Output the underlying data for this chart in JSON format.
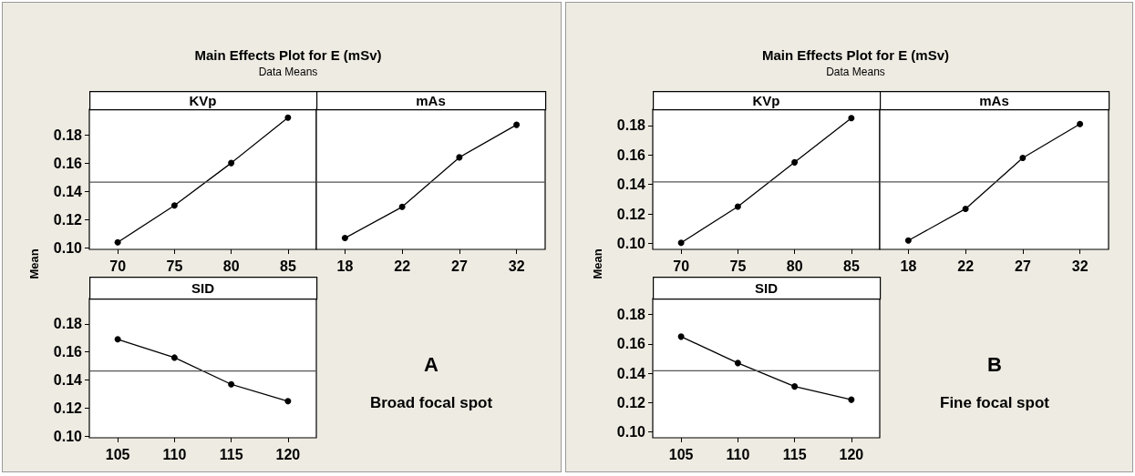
{
  "chart_data": [
    {
      "type": "line",
      "title": "Main Effects Plot for E (mSv)",
      "subtitle": "Data Means",
      "xlabel": "KVp",
      "ylabel": "Mean",
      "categories": [
        "70",
        "75",
        "80",
        "85"
      ],
      "series": [
        {
          "color": "#000000",
          "values": [
            0.104,
            0.13,
            0.16,
            0.192
          ]
        }
      ],
      "ylim": [
        0.099,
        0.198
      ],
      "yticks": [
        {
          "value": 0.1,
          "label": "0.10"
        },
        {
          "value": 0.12,
          "label": "0.12"
        },
        {
          "value": 0.14,
          "label": "0.14"
        },
        {
          "value": 0.16,
          "label": "0.16"
        },
        {
          "value": 0.18,
          "label": "0.18"
        }
      ],
      "ref_lines": [
        {
          "axis": "y",
          "value": 0.1465,
          "color": "#555555"
        }
      ],
      "marker": "circle",
      "line_style": "solid",
      "grid": false
    },
    {
      "type": "line",
      "xlabel": "mAs",
      "categories": [
        "18",
        "22",
        "27",
        "32"
      ],
      "series": [
        {
          "color": "#000000",
          "values": [
            0.107,
            0.129,
            0.164,
            0.187
          ]
        }
      ],
      "ylim": [
        0.099,
        0.198
      ],
      "ref_lines": [
        {
          "axis": "y",
          "value": 0.1465,
          "color": "#555555"
        }
      ],
      "marker": "circle",
      "line_style": "solid",
      "grid": false,
      "tick_labels": "x"
    },
    {
      "type": "line",
      "xlabel": "SID",
      "categories": [
        "105",
        "110",
        "115",
        "120"
      ],
      "series": [
        {
          "color": "#000000",
          "values": [
            0.169,
            0.156,
            0.137,
            0.125
          ]
        }
      ],
      "ylim": [
        0.099,
        0.198
      ],
      "yticks": [
        {
          "value": 0.1,
          "label": "0.10"
        },
        {
          "value": 0.12,
          "label": "0.12"
        },
        {
          "value": 0.14,
          "label": "0.14"
        },
        {
          "value": 0.16,
          "label": "0.16"
        },
        {
          "value": 0.18,
          "label": "0.18"
        }
      ],
      "ref_lines": [
        {
          "axis": "y",
          "value": 0.1465,
          "color": "#555555"
        }
      ],
      "marker": "circle",
      "line_style": "solid",
      "grid": false,
      "annotations": [
        "A",
        "Broad focal spot"
      ]
    },
    {
      "type": "line",
      "title": "Main Effects Plot for E (mSv)",
      "subtitle": "Data Means",
      "xlabel": "KVp",
      "ylabel": "Mean",
      "categories": [
        "70",
        "75",
        "80",
        "85"
      ],
      "series": [
        {
          "color": "#000000",
          "values": [
            0.1005,
            0.125,
            0.155,
            0.185
          ]
        }
      ],
      "ylim": [
        0.096,
        0.191
      ],
      "yticks": [
        {
          "value": 0.1,
          "label": "0.10"
        },
        {
          "value": 0.12,
          "label": "0.12"
        },
        {
          "value": 0.14,
          "label": "0.14"
        },
        {
          "value": 0.16,
          "label": "0.16"
        },
        {
          "value": 0.18,
          "label": "0.18"
        }
      ],
      "ref_lines": [
        {
          "axis": "y",
          "value": 0.1417,
          "color": "#555555"
        }
      ],
      "marker": "circle",
      "line_style": "solid",
      "grid": false
    },
    {
      "type": "line",
      "xlabel": "mAs",
      "categories": [
        "18",
        "22",
        "27",
        "32"
      ],
      "series": [
        {
          "color": "#000000",
          "values": [
            0.102,
            0.1235,
            0.158,
            0.181
          ]
        }
      ],
      "ylim": [
        0.096,
        0.191
      ],
      "ref_lines": [
        {
          "axis": "y",
          "value": 0.1417,
          "color": "#555555"
        }
      ],
      "marker": "circle",
      "line_style": "solid",
      "grid": false,
      "tick_labels": "x"
    },
    {
      "type": "line",
      "xlabel": "SID",
      "categories": [
        "105",
        "110",
        "115",
        "120"
      ],
      "series": [
        {
          "color": "#000000",
          "values": [
            0.165,
            0.147,
            0.131,
            0.122
          ]
        }
      ],
      "ylim": [
        0.096,
        0.191
      ],
      "yticks": [
        {
          "value": 0.1,
          "label": "0.10"
        },
        {
          "value": 0.12,
          "label": "0.12"
        },
        {
          "value": 0.14,
          "label": "0.14"
        },
        {
          "value": 0.16,
          "label": "0.16"
        },
        {
          "value": 0.18,
          "label": "0.18"
        }
      ],
      "ref_lines": [
        {
          "axis": "y",
          "value": 0.1417,
          "color": "#555555"
        }
      ],
      "marker": "circle",
      "line_style": "solid",
      "grid": false,
      "annotations": [
        "B",
        "Fine focal spot"
      ]
    }
  ]
}
